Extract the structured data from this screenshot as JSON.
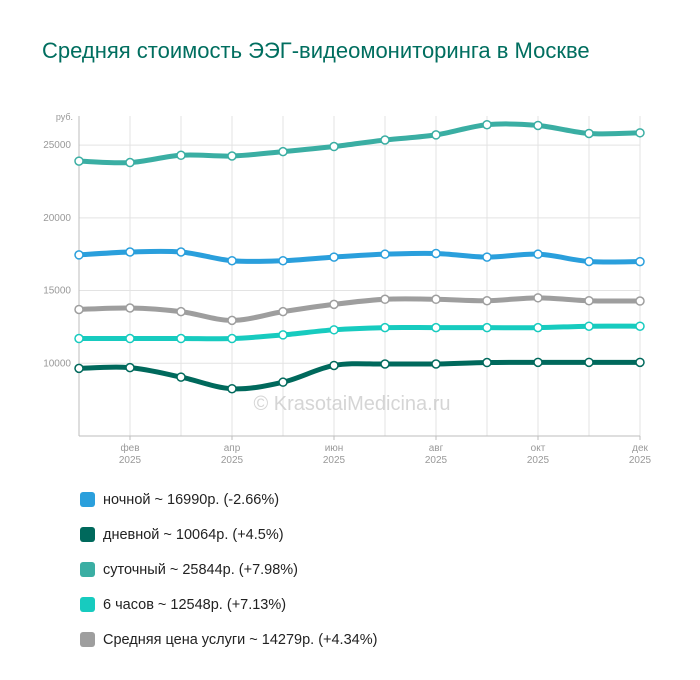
{
  "title": "Средняя стоимость ЭЭГ-видеомониторинга в Москве",
  "watermark": "© KrasotaiMedicina.ru",
  "chart_data": {
    "type": "line",
    "y_unit": "руб.",
    "ylim": [
      5000,
      27000
    ],
    "y_ticks": [
      10000,
      15000,
      20000,
      25000
    ],
    "grid": true,
    "x_tick_labels": [
      {
        "index": 1,
        "month": "фев",
        "year": "2025"
      },
      {
        "index": 3,
        "month": "апр",
        "year": "2025"
      },
      {
        "index": 5,
        "month": "июн",
        "year": "2025"
      },
      {
        "index": 7,
        "month": "авг",
        "year": "2025"
      },
      {
        "index": 9,
        "month": "окт",
        "year": "2025"
      },
      {
        "index": 11,
        "month": "дек",
        "year": "2025"
      }
    ],
    "series": [
      {
        "name": "суточный",
        "color": "#3aaea3",
        "values": [
          23900,
          23800,
          24300,
          24250,
          24550,
          24900,
          25350,
          25700,
          26400,
          26350,
          25800,
          25844
        ]
      },
      {
        "name": "ночной",
        "color": "#2a9fdc",
        "values": [
          17450,
          17650,
          17650,
          17050,
          17050,
          17300,
          17500,
          17550,
          17300,
          17500,
          17000,
          16990
        ]
      },
      {
        "name": "Средняя цена услуги",
        "color": "#9e9e9e",
        "values": [
          13700,
          13800,
          13550,
          12950,
          13550,
          14050,
          14400,
          14400,
          14300,
          14500,
          14300,
          14279
        ]
      },
      {
        "name": "6 часов",
        "color": "#17cbbf",
        "values": [
          11700,
          11700,
          11700,
          11700,
          11950,
          12300,
          12450,
          12450,
          12450,
          12450,
          12548,
          12548
        ]
      },
      {
        "name": "дневной",
        "color": "#00695c",
        "values": [
          9650,
          9700,
          9050,
          8250,
          8700,
          9850,
          9950,
          9950,
          10050,
          10064,
          10064,
          10064
        ]
      }
    ]
  },
  "legend": [
    {
      "color": "#2a9fdc",
      "label": "ночной ~ 16990р. (-2.66%)"
    },
    {
      "color": "#00695c",
      "label": "дневной ~ 10064р. (+4.5%)"
    },
    {
      "color": "#3aaea3",
      "label": "суточный ~ 25844р. (+7.98%)"
    },
    {
      "color": "#17cbbf",
      "label": "6 часов ~ 12548р. (+7.13%)"
    },
    {
      "color": "#9e9e9e",
      "label": "Средняя цена услуги ~ 14279р. (+4.34%)"
    }
  ]
}
